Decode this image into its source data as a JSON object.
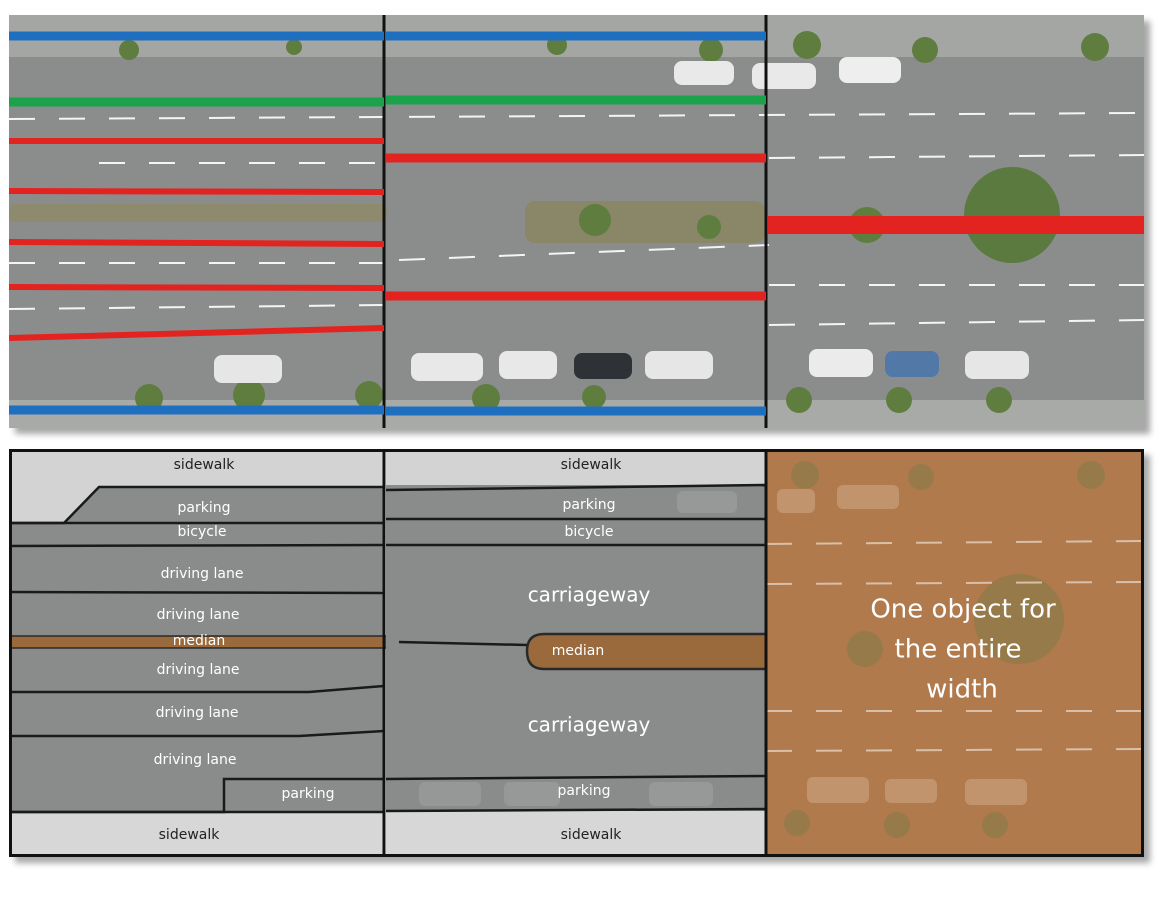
{
  "colors": {
    "road": "#8a8c8c",
    "sidewalk": "#c9cbc9",
    "median_fill": "#9a6a3c",
    "blue_line": "#1f6fc1",
    "green_line": "#1aa34a",
    "red_line": "#e3231f",
    "brown_overlay": "#b07a4c",
    "vegetation": "#5f7d3f"
  },
  "top_panel": {
    "description_lines": [
      "blue",
      "green",
      "red"
    ]
  },
  "bottom_panel": {
    "left": {
      "sidewalk_top": "sidewalk",
      "parking_top": "parking",
      "bicycle": "bicycle",
      "driving_lane_1": "driving lane",
      "driving_lane_2": "driving lane",
      "median": "median",
      "driving_lane_3": "driving lane",
      "driving_lane_4": "driving lane",
      "driving_lane_5": "driving lane",
      "parking_bottom": "parking",
      "sidewalk_bottom": "sidewalk"
    },
    "middle": {
      "sidewalk_top": "sidewalk",
      "parking_top": "parking",
      "bicycle": "bicycle",
      "carriageway_top": "carriageway",
      "median": "median",
      "carriageway_bottom": "carriageway",
      "parking_bottom": "parking",
      "sidewalk_bottom": "sidewalk"
    },
    "right": {
      "caption_line1": "One object for",
      "caption_line2": "the entire",
      "caption_line3": "width"
    }
  }
}
